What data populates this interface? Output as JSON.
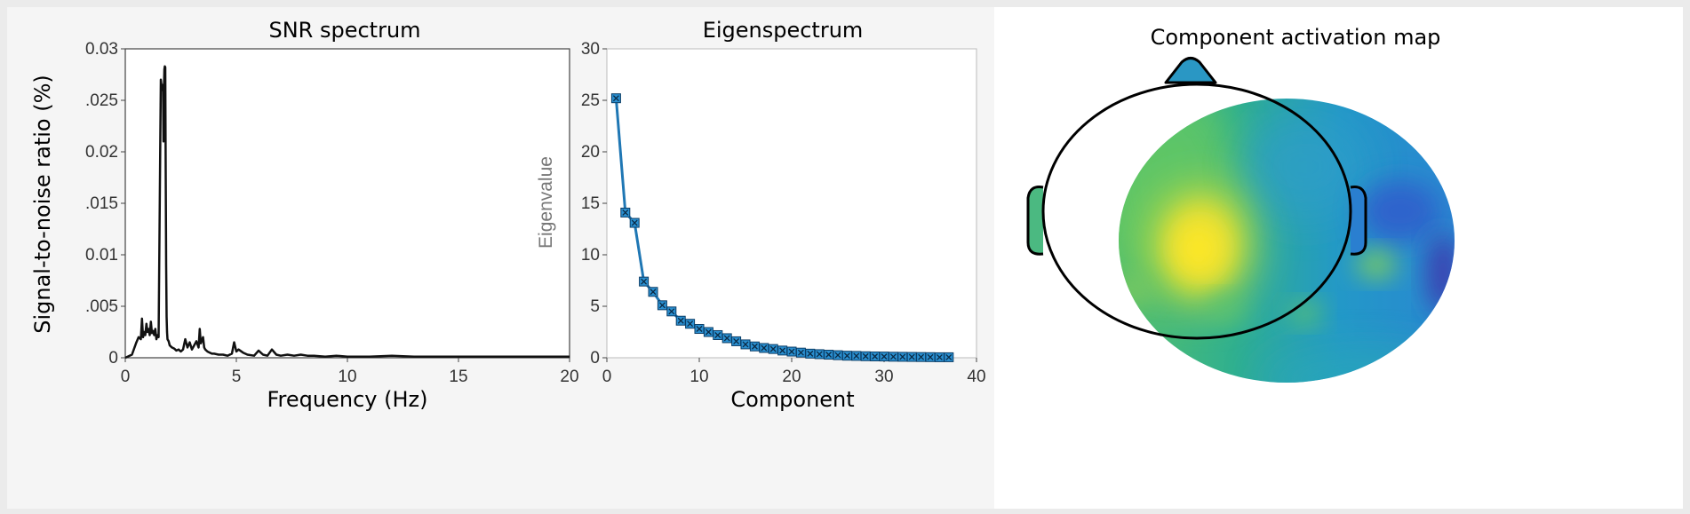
{
  "chart_data": [
    {
      "type": "line",
      "title": "SNR spectrum",
      "xlabel": "Frequency (Hz)",
      "ylabel": "Signal-to-noise ratio (%)",
      "xlim": [
        0,
        20
      ],
      "ylim": [
        0,
        0.03
      ],
      "xticks": [
        "0",
        "5",
        "10",
        "15",
        "20"
      ],
      "yticks": [
        "0",
        ".005",
        "0.01",
        ".015",
        "0.02",
        ".025",
        "0.03"
      ],
      "series_color": "#111111",
      "x": [
        0,
        0.3,
        0.5,
        0.6,
        0.7,
        0.75,
        0.8,
        0.85,
        0.9,
        0.95,
        1.0,
        1.05,
        1.1,
        1.15,
        1.2,
        1.25,
        1.3,
        1.35,
        1.4,
        1.45,
        1.5,
        1.55,
        1.6,
        1.65,
        1.7,
        1.72,
        1.74,
        1.76,
        1.78,
        1.8,
        1.82,
        1.84,
        1.86,
        1.88,
        1.9,
        1.95,
        2.0,
        2.1,
        2.2,
        2.3,
        2.4,
        2.5,
        2.6,
        2.7,
        2.8,
        2.9,
        3.0,
        3.1,
        3.2,
        3.3,
        3.35,
        3.4,
        3.5,
        3.55,
        3.6,
        3.7,
        3.8,
        3.9,
        4.0,
        4.2,
        4.4,
        4.6,
        4.8,
        4.9,
        5.0,
        5.1,
        5.3,
        5.5,
        5.8,
        6.0,
        6.2,
        6.4,
        6.6,
        6.8,
        7.0,
        7.3,
        7.6,
        7.9,
        8.2,
        8.5,
        9.0,
        9.5,
        10,
        11,
        12,
        13,
        14,
        15,
        16,
        17,
        18,
        19,
        20
      ],
      "y": [
        0,
        0.0003,
        0.0015,
        0.002,
        0.0018,
        0.0038,
        0.002,
        0.0025,
        0.0022,
        0.0033,
        0.0025,
        0.0028,
        0.0022,
        0.0035,
        0.0024,
        0.0026,
        0.0022,
        0.0028,
        0.0018,
        0.0022,
        0.002,
        0.015,
        0.027,
        0.026,
        0.0265,
        0.021,
        0.026,
        0.028,
        0.0283,
        0.0282,
        0.018,
        0.009,
        0.004,
        0.0025,
        0.0018,
        0.0016,
        0.0012,
        0.001,
        0.0009,
        0.0007,
        0.0008,
        0.0006,
        0.0008,
        0.0018,
        0.001,
        0.0015,
        0.0008,
        0.0012,
        0.0016,
        0.001,
        0.0028,
        0.0014,
        0.002,
        0.001,
        0.0008,
        0.0006,
        0.0005,
        0.0004,
        0.0004,
        0.0003,
        0.0003,
        0.0002,
        0.0004,
        0.0015,
        0.0006,
        0.0008,
        0.0005,
        0.0003,
        0.0002,
        0.0007,
        0.0003,
        0.0002,
        0.0008,
        0.0003,
        0.0002,
        0.0003,
        0.0002,
        0.0003,
        0.0002,
        0.0002,
        0.0001,
        0.0002,
        0.0001,
        0.0001,
        0.0002,
        0.0001,
        0.0001,
        0.0001,
        0.0001,
        0.0001,
        0.0001,
        0.0001,
        0.0001
      ]
    },
    {
      "type": "line",
      "title": "Eigenspectrum",
      "xlabel": "Component",
      "ylabel": "Eigenvalue",
      "xlim": [
        0,
        40
      ],
      "ylim": [
        0,
        30
      ],
      "xticks": [
        "0",
        "10",
        "20",
        "30",
        "40"
      ],
      "yticks": [
        "0",
        "5",
        "10",
        "15",
        "20",
        "25",
        "30"
      ],
      "series_color": "#1f77b4",
      "x": [
        1,
        2,
        3,
        4,
        5,
        6,
        7,
        8,
        9,
        10,
        11,
        12,
        13,
        14,
        15,
        16,
        17,
        18,
        19,
        20,
        21,
        22,
        23,
        24,
        25,
        26,
        27,
        28,
        29,
        30,
        31,
        32,
        33,
        34,
        35,
        36,
        37
      ],
      "y": [
        25.2,
        14.1,
        13.1,
        7.4,
        6.4,
        5.1,
        4.5,
        3.6,
        3.3,
        2.8,
        2.5,
        2.2,
        1.9,
        1.6,
        1.3,
        1.1,
        0.95,
        0.85,
        0.7,
        0.6,
        0.5,
        0.4,
        0.35,
        0.3,
        0.25,
        0.2,
        0.18,
        0.15,
        0.13,
        0.12,
        0.1,
        0.09,
        0.08,
        0.07,
        0.06,
        0.05,
        0.05
      ]
    },
    {
      "type": "heatmap",
      "title": "Component activation map",
      "colormap": [
        "#440154",
        "#3b52c4",
        "#1f8ed4",
        "#2ab2b0",
        "#5cc66c",
        "#d4e23a",
        "#fde725"
      ]
    }
  ]
}
